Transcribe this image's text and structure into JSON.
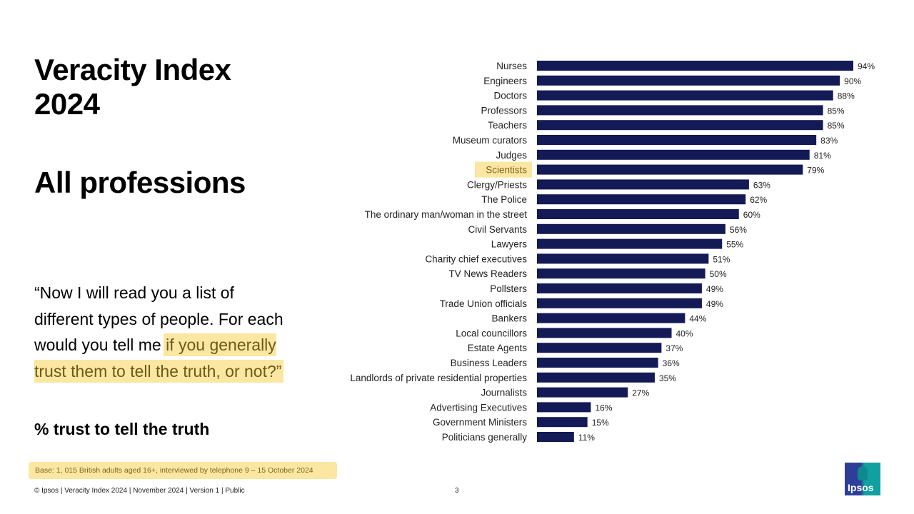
{
  "slide": {
    "title_line1": "Veracity Index",
    "title_line2": "2024",
    "subtitle": "All professions",
    "quote_part1": "“Now I will read you a list of different types of people. For each would you tell me ",
    "quote_highlight": "if you generally trust them to tell the truth, or not?”",
    "measure": "% trust to tell the truth",
    "base": "Base: 1, 015 British adults aged 16+, interviewed by telephone 9 – 15 October 2024",
    "footer": "© Ipsos | Veracity Index 2024 | November 2024 | Version 1 | Public",
    "page_number": "3",
    "logo_text": "Ipsos"
  },
  "colors": {
    "bar": "#131a55",
    "highlight": "#fbe7a1",
    "highlight_text": "#7a6520"
  },
  "chart_data": {
    "type": "bar",
    "orientation": "horizontal",
    "categories": [
      "Nurses",
      "Engineers",
      "Doctors",
      "Professors",
      "Teachers",
      "Museum curators",
      "Judges",
      "Scientists",
      "Clergy/Priests",
      "The Police",
      "The ordinary man/woman in the street",
      "Civil Servants",
      "Lawyers",
      "Charity chief executives",
      "TV News Readers",
      "Pollsters",
      "Trade Union officials",
      "Bankers",
      "Local councillors",
      "Estate Agents",
      "Business Leaders",
      "Landlords of private residential properties",
      "Journalists",
      "Advertising Executives",
      "Government Ministers",
      "Politicians generally"
    ],
    "values": [
      94,
      90,
      88,
      85,
      85,
      83,
      81,
      79,
      63,
      62,
      60,
      56,
      55,
      51,
      50,
      49,
      49,
      44,
      40,
      37,
      36,
      35,
      27,
      16,
      15,
      11
    ],
    "value_suffix": "%",
    "highlighted_category": "Scientists",
    "xlim": [
      0,
      100
    ],
    "grid": false
  }
}
